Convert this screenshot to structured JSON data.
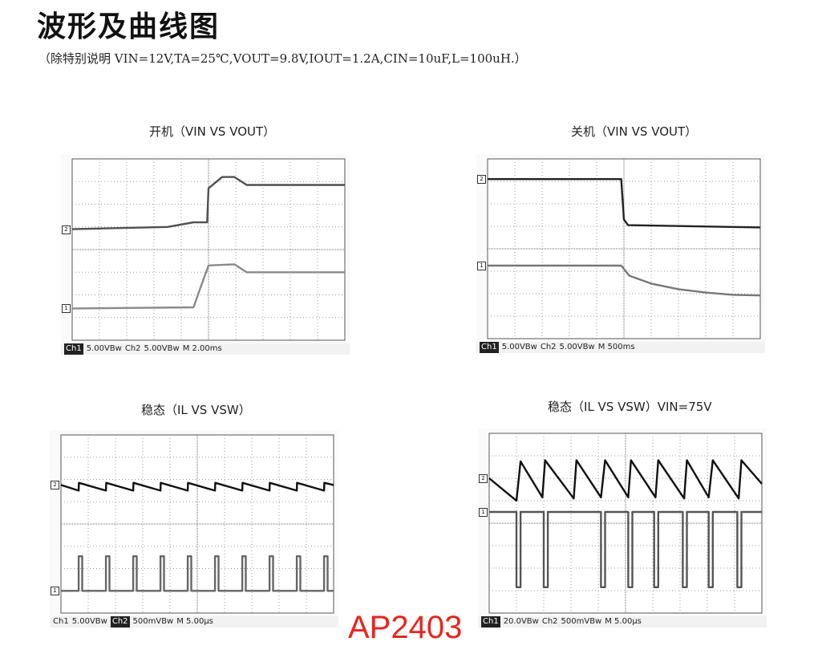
{
  "page": {
    "title": "波形及曲线图",
    "conditions": "（除特别说明 VIN=12V,TA=25℃,VOUT=9.8V,IOUT=1.2A,CIN=10uF,L=100uH.）",
    "brand": "AP2403"
  },
  "chart_data": [
    {
      "type": "line",
      "title": "开机（VIN VS VOUT）",
      "x_unit": "div",
      "xlim": [
        0,
        10
      ],
      "ylim": [
        0,
        8
      ],
      "markers": [
        "2",
        "1"
      ],
      "footer": [
        {
          "text": "Ch1",
          "inverse": true
        },
        {
          "text": "5.00VBw",
          "inverse": false
        },
        {
          "text": "Ch2",
          "inverse": false
        },
        {
          "text": "5.00VBw",
          "inverse": false
        },
        {
          "text": "M 2.00ms",
          "inverse": false
        }
      ],
      "series": [
        {
          "color": "#505050",
          "x": [
            0,
            3.5,
            4.45,
            4.95,
            5.0,
            5.5,
            5.95,
            6.4,
            10
          ],
          "y": [
            4.9,
            5.0,
            5.2,
            5.2,
            6.7,
            7.2,
            7.2,
            6.85,
            6.85
          ]
        },
        {
          "color": "#8a8a8a",
          "x": [
            0,
            4.45,
            4.7,
            5.0,
            5.95,
            6.4,
            10
          ],
          "y": [
            1.4,
            1.45,
            2.3,
            3.3,
            3.35,
            3.0,
            3.0
          ]
        }
      ]
    },
    {
      "type": "line",
      "title": "关机（VIN VS VOUT）",
      "x_unit": "div",
      "xlim": [
        0,
        10
      ],
      "ylim": [
        0,
        8
      ],
      "markers": [
        "2",
        "1"
      ],
      "footer": [
        {
          "text": "Ch1",
          "inverse": true
        },
        {
          "text": "5.00VBw",
          "inverse": false
        },
        {
          "text": "Ch2",
          "inverse": false
        },
        {
          "text": "5.00VBw",
          "inverse": false
        },
        {
          "text": "M 500ms",
          "inverse": false
        }
      ],
      "series": [
        {
          "color": "#222222",
          "x": [
            0,
            4.9,
            5.0,
            5.15,
            10
          ],
          "y": [
            7.1,
            7.1,
            5.3,
            5.05,
            4.95
          ]
        },
        {
          "color": "#777777",
          "x": [
            0,
            4.9,
            5.2,
            6.0,
            7.0,
            8.0,
            9.0,
            10
          ],
          "y": [
            3.25,
            3.25,
            2.8,
            2.45,
            2.2,
            2.05,
            1.95,
            1.92
          ]
        }
      ]
    },
    {
      "type": "line",
      "title": "稳态（IL VS VSW）",
      "x_unit": "div",
      "xlim": [
        0,
        10
      ],
      "ylim": [
        0,
        8
      ],
      "markers": [
        "2",
        "1"
      ],
      "footer": [
        {
          "text": "Ch1",
          "inverse": false
        },
        {
          "text": "5.00VBw",
          "inverse": false
        },
        {
          "text": "Ch2",
          "inverse": true
        },
        {
          "text": "500mVBw",
          "inverse": false
        },
        {
          "text": "M 5.00μs",
          "inverse": false
        }
      ],
      "series": [
        {
          "color": "#111111",
          "x": [
            0,
            0.65,
            0.66,
            1.65,
            1.66,
            2.65,
            2.66,
            3.65,
            3.66,
            4.65,
            4.66,
            5.65,
            5.66,
            6.65,
            6.66,
            7.65,
            7.66,
            8.65,
            8.66,
            9.65,
            9.66,
            10
          ],
          "y": [
            5.75,
            5.5,
            5.85,
            5.5,
            5.85,
            5.5,
            5.85,
            5.5,
            5.85,
            5.5,
            5.85,
            5.5,
            5.85,
            5.5,
            5.85,
            5.5,
            5.85,
            5.5,
            5.85,
            5.5,
            5.85,
            5.75
          ]
        },
        {
          "color": "#666666",
          "x": [
            0,
            0.65,
            0.65,
            0.78,
            0.78,
            1.65,
            1.65,
            1.78,
            1.78,
            2.65,
            2.65,
            2.78,
            2.78,
            3.65,
            3.65,
            3.78,
            3.78,
            4.65,
            4.65,
            4.78,
            4.78,
            5.65,
            5.65,
            5.78,
            5.78,
            6.65,
            6.65,
            6.78,
            6.78,
            7.65,
            7.65,
            7.78,
            7.78,
            8.65,
            8.65,
            8.78,
            8.78,
            9.65,
            9.65,
            9.78,
            9.78,
            10
          ],
          "y": [
            1.0,
            1.0,
            2.55,
            2.55,
            1.0,
            1.0,
            2.55,
            2.55,
            1.0,
            1.0,
            2.55,
            2.55,
            1.0,
            1.0,
            2.55,
            2.55,
            1.0,
            1.0,
            2.55,
            2.55,
            1.0,
            1.0,
            2.55,
            2.55,
            1.0,
            1.0,
            2.55,
            2.55,
            1.0,
            1.0,
            2.55,
            2.55,
            1.0,
            1.0,
            2.55,
            2.55,
            1.0,
            1.0,
            2.55,
            2.55,
            1.0,
            1.0
          ]
        }
      ]
    },
    {
      "type": "line",
      "title": "稳态（IL VS VSW）VIN=75V",
      "x_unit": "div",
      "xlim": [
        0,
        10
      ],
      "ylim": [
        0,
        8
      ],
      "markers": [
        "2",
        "1"
      ],
      "footer": [
        {
          "text": "Ch1",
          "inverse": true
        },
        {
          "text": "20.0VBw",
          "inverse": false
        },
        {
          "text": "Ch2",
          "inverse": false
        },
        {
          "text": "500mVBw",
          "inverse": false
        },
        {
          "text": "M 5.00μs",
          "inverse": false
        }
      ],
      "series": [
        {
          "color": "#111111",
          "x": [
            0,
            1.0,
            1.15,
            1.95,
            2.05,
            3.1,
            3.2,
            4.1,
            4.25,
            5.1,
            5.2,
            6.1,
            6.2,
            7.15,
            7.25,
            8.05,
            8.2,
            9.15,
            9.25,
            10
          ],
          "y": [
            6.0,
            5.0,
            6.75,
            5.15,
            6.8,
            5.1,
            6.8,
            5.15,
            6.8,
            5.15,
            6.8,
            5.15,
            6.8,
            5.1,
            6.8,
            5.15,
            6.8,
            5.1,
            6.8,
            5.75
          ]
        },
        {
          "color": "#555555",
          "x": [
            0,
            1.0,
            1.0,
            1.15,
            1.15,
            2.0,
            2.0,
            2.15,
            2.15,
            4.1,
            4.1,
            4.25,
            4.25,
            5.1,
            5.1,
            5.25,
            5.25,
            6.05,
            6.05,
            6.2,
            6.2,
            7.1,
            7.1,
            7.25,
            7.25,
            8.05,
            8.05,
            8.2,
            8.2,
            9.1,
            9.1,
            9.25,
            9.25,
            10
          ],
          "y": [
            4.5,
            4.5,
            1.15,
            1.15,
            4.5,
            4.5,
            1.15,
            1.15,
            4.5,
            4.5,
            1.15,
            1.15,
            4.5,
            4.5,
            1.15,
            1.15,
            4.5,
            4.5,
            1.15,
            1.15,
            4.5,
            4.5,
            1.15,
            1.15,
            4.5,
            4.5,
            1.15,
            1.15,
            4.5,
            4.5,
            1.15,
            1.15,
            4.5,
            4.5
          ]
        }
      ]
    }
  ]
}
